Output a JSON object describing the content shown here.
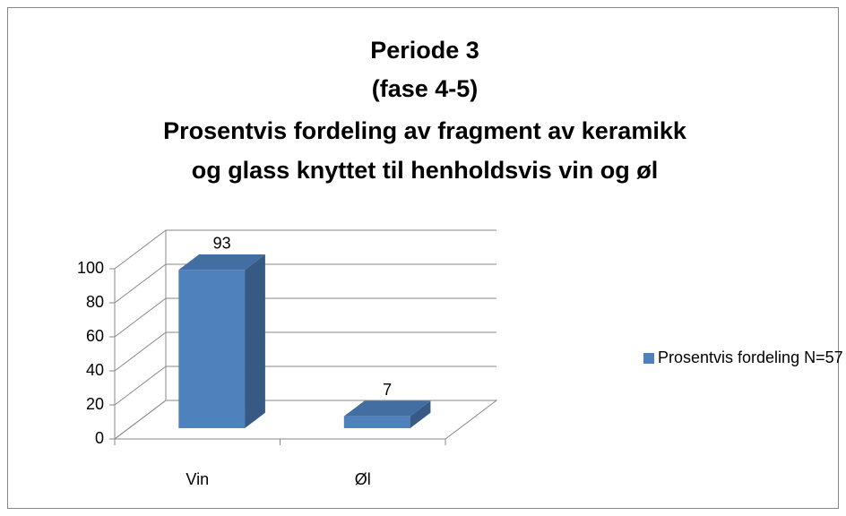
{
  "chart_data": {
    "type": "bar3d",
    "title": [
      "Periode 3",
      "(fase 4-5)",
      "Prosentvis fordeling av fragment av keramikk",
      "og glass knyttet til henholdsvis vin og øl"
    ],
    "categories": [
      "Vin",
      "Øl"
    ],
    "series": [
      {
        "name": "Prosentvis fordeling N=57",
        "color": "#4f81bd",
        "values": [
          93,
          7
        ]
      }
    ],
    "ylim": [
      0,
      100
    ],
    "yticks": [
      0,
      20,
      40,
      60,
      80,
      100
    ],
    "grid": true,
    "legend": "right"
  }
}
